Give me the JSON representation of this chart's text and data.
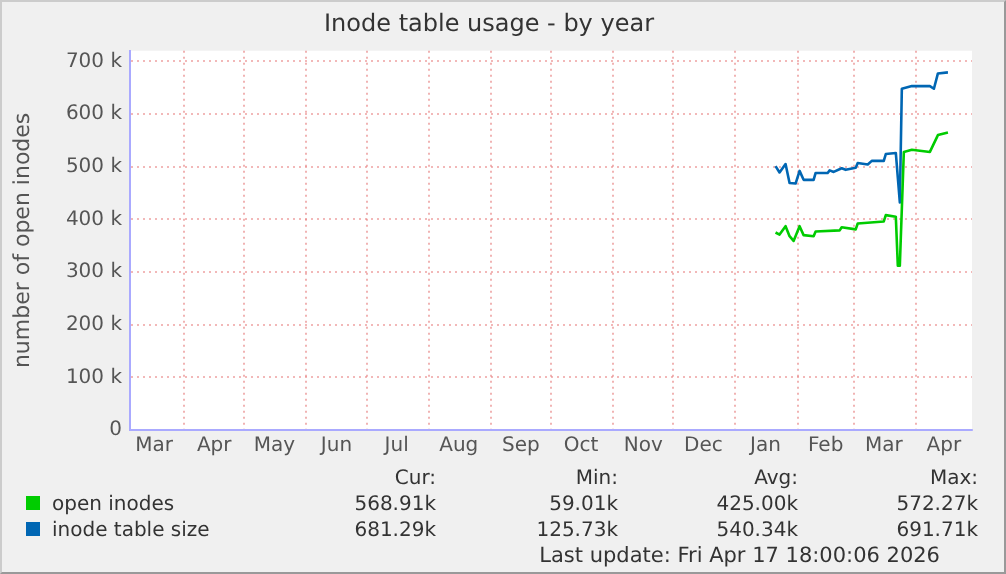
{
  "chart_data": {
    "type": "line",
    "title": "Inode table usage - by year",
    "ylabel": "number of open inodes",
    "xlim": [
      "2025-03-05",
      "2026-04-29"
    ],
    "xticks": [
      {
        "value": "2025-03-17",
        "label": "Mar"
      },
      {
        "value": "2025-04-01",
        "label": null
      },
      {
        "value": "2025-04-16",
        "label": "Apr"
      },
      {
        "value": "2025-05-01",
        "label": null
      },
      {
        "value": "2025-05-16",
        "label": "May"
      },
      {
        "value": "2025-06-01",
        "label": null
      },
      {
        "value": "2025-06-16",
        "label": "Jun"
      },
      {
        "value": "2025-07-01",
        "label": null
      },
      {
        "value": "2025-07-16",
        "label": "Jul"
      },
      {
        "value": "2025-08-01",
        "label": null
      },
      {
        "value": "2025-08-16",
        "label": "Aug"
      },
      {
        "value": "2025-09-01",
        "label": null
      },
      {
        "value": "2025-09-16",
        "label": "Sep"
      },
      {
        "value": "2025-10-01",
        "label": null
      },
      {
        "value": "2025-10-16",
        "label": "Oct"
      },
      {
        "value": "2025-11-01",
        "label": null
      },
      {
        "value": "2025-11-16",
        "label": "Nov"
      },
      {
        "value": "2025-12-01",
        "label": null
      },
      {
        "value": "2025-12-16",
        "label": "Dec"
      },
      {
        "value": "2026-01-01",
        "label": null
      },
      {
        "value": "2026-01-16",
        "label": "Jan"
      },
      {
        "value": "2026-02-01",
        "label": null
      },
      {
        "value": "2026-02-15",
        "label": "Feb"
      },
      {
        "value": "2026-03-01",
        "label": null
      },
      {
        "value": "2026-03-16",
        "label": "Mar"
      },
      {
        "value": "2026-04-01",
        "label": null
      },
      {
        "value": "2026-04-15",
        "label": "Apr"
      }
    ],
    "ylim": [
      0,
      720000
    ],
    "yticks": [
      0,
      {
        "value": 100000,
        "label": "100 k"
      },
      {
        "value": 200000,
        "label": "200 k"
      },
      {
        "value": 300000,
        "label": "300 k"
      },
      {
        "value": 400000,
        "label": "400 k"
      },
      {
        "value": 500000,
        "label": "500 k"
      },
      {
        "value": 600000,
        "label": "600 k"
      },
      {
        "value": 700000,
        "label": "700 k"
      }
    ],
    "grid": true,
    "legend": "bottom left",
    "marker": "none",
    "line_style": "solid",
    "series": [
      {
        "name": "open inodes",
        "color": "#00cc00",
        "x": [
          "2026-01-21",
          "2026-01-23",
          "2026-01-26",
          "2026-01-28",
          "2026-01-30",
          "2026-02-02",
          "2026-02-04",
          "2026-02-09",
          "2026-02-10",
          "2026-02-22",
          "2026-02-23",
          "2026-03-02",
          "2026-03-03",
          "2026-03-16",
          "2026-03-17",
          "2026-03-22",
          "2026-03-23",
          "2026-03-24",
          "2026-03-26",
          "2026-03-30",
          "2026-04-08",
          "2026-04-12",
          "2026-04-17"
        ],
        "values": [
          375000,
          371000,
          387000,
          368000,
          359000,
          387000,
          370000,
          368000,
          377000,
          379000,
          385000,
          381000,
          392000,
          396000,
          408000,
          405000,
          312000,
          312000,
          528000,
          532000,
          528000,
          560000,
          565000
        ]
      },
      {
        "name": "inode table size",
        "color": "#0066b3",
        "x": [
          "2026-01-21",
          "2026-01-23",
          "2026-01-26",
          "2026-01-28",
          "2026-01-31",
          "2026-02-02",
          "2026-02-04",
          "2026-02-09",
          "2026-02-10",
          "2026-02-16",
          "2026-02-17",
          "2026-02-19",
          "2026-02-23",
          "2026-02-25",
          "2026-03-02",
          "2026-03-03",
          "2026-03-08",
          "2026-03-10",
          "2026-03-16",
          "2026-03-17",
          "2026-03-22",
          "2026-03-23",
          "2026-03-24",
          "2026-03-25",
          "2026-03-30",
          "2026-04-08",
          "2026-04-10",
          "2026-04-12",
          "2026-04-17"
        ],
        "values": [
          501000,
          489000,
          505000,
          469000,
          468000,
          492000,
          475000,
          475000,
          488000,
          488000,
          493000,
          490000,
          497000,
          494000,
          498000,
          507000,
          504000,
          511000,
          511000,
          524000,
          526000,
          479000,
          432000,
          648000,
          653000,
          653000,
          648000,
          677000,
          679000
        ]
      }
    ],
    "annotations": [
      "Cur:",
      "Min:",
      "Avg:",
      "Max:",
      "568.91k",
      "59.01k",
      "425.00k",
      "572.27k",
      "681.29k",
      "125.73k",
      "540.34k",
      "691.71k",
      "Last update: Fri Apr 17 18:00:06 2026"
    ]
  }
}
